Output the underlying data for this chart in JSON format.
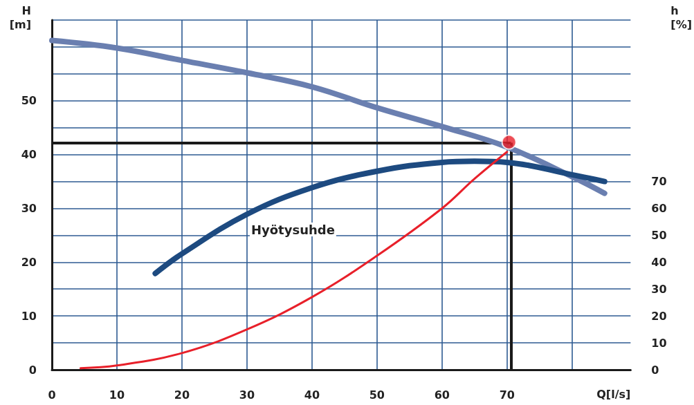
{
  "chart_data": {
    "type": "line",
    "xlabel": "Q[l/s]",
    "ylabel": "H [m]",
    "y2label": "h [%]",
    "xlim": [
      0,
      89
    ],
    "xticks": [
      0,
      10,
      20,
      30,
      40,
      50,
      60,
      70,
      {
        "value": 80,
        "label": null
      }
    ],
    "ylim": [
      0,
      65
    ],
    "yticks": [
      0,
      {
        "value": 5,
        "label": null
      },
      10,
      {
        "value": 15,
        "label": null
      },
      20,
      {
        "value": 25,
        "label": null
      },
      30,
      {
        "value": 35,
        "label": null
      },
      40,
      {
        "value": 45,
        "label": null
      },
      50,
      {
        "value": 55,
        "label": null
      },
      {
        "value": 60,
        "label": null
      },
      {
        "value": 65,
        "label": null
      }
    ],
    "y2lim": [
      0,
      130
    ],
    "y2ticks": [
      0,
      10,
      20,
      30,
      40,
      50,
      60,
      70
    ],
    "grid": true,
    "marker": "none",
    "line_style": "solid",
    "series": [
      {
        "color": "#6a7fb0",
        "x": [
          0,
          10,
          20,
          30,
          40,
          50,
          60,
          70,
          80,
          85
        ],
        "values": [
          61.2,
          59.8,
          57.5,
          55.2,
          52.6,
          48.7,
          45.2,
          41.4,
          35.9,
          32.8
        ]
      },
      {
        "name": "Hyötysuhde",
        "color": "#1d4a80",
        "axis": "y2",
        "x": [
          15.9,
          20,
          30,
          40,
          50,
          60,
          65,
          70,
          80,
          85
        ],
        "values": [
          35.8,
          43.1,
          57.8,
          67.7,
          73.8,
          77.1,
          77.5,
          77.1,
          72.5,
          70
        ]
      },
      {
        "color": "#e8202a",
        "x": [
          4.4,
          10,
          20,
          30,
          40,
          50,
          60,
          65,
          70
        ],
        "values": [
          0.3,
          0.8,
          3.1,
          7.5,
          13.5,
          21.2,
          30,
          35.5,
          40.5
        ]
      },
      {
        "type": "scatter",
        "marker": "circle",
        "color": "#e8202a",
        "x": [
          70.3
        ],
        "values": [
          42.3
        ]
      }
    ],
    "ref_lines": [
      {
        "axis": "y",
        "value": 42.2,
        "color": "#1a1a1a"
      },
      {
        "axis": "x",
        "value": 70.6,
        "color": "#1a1a1a"
      }
    ]
  }
}
